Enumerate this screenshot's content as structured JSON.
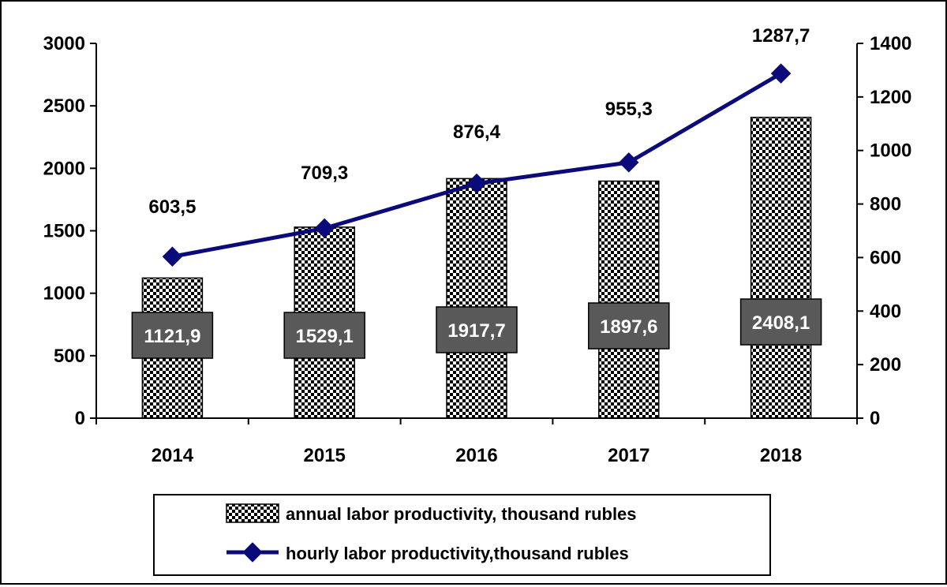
{
  "chart_data": {
    "type": "bar",
    "categories": [
      "2014",
      "2015",
      "2016",
      "2017",
      "2018"
    ],
    "series": [
      {
        "name": "annual labor productivity, thousand rubles",
        "type": "bar",
        "axis": "left",
        "values": [
          1121.9,
          1529.1,
          1917.7,
          1897.6,
          2408.1
        ],
        "labels": [
          "1121,9",
          "1529,1",
          "1917,7",
          "1897,6",
          "2408,1"
        ]
      },
      {
        "name": "hourly labor productivity,thousand rubles",
        "type": "line",
        "axis": "right",
        "values": [
          603.5,
          709.3,
          876.4,
          955.3,
          1287.7
        ],
        "labels": [
          "603,5",
          "709,3",
          "876,4",
          "955,3",
          "1287,7"
        ]
      }
    ],
    "y_left": {
      "ylim": [
        0,
        3000
      ],
      "ticks": [
        "0",
        "500",
        "1000",
        "1500",
        "2000",
        "2500",
        "3000"
      ]
    },
    "y_right": {
      "ylim": [
        0,
        1400
      ],
      "ticks": [
        "0",
        "200",
        "400",
        "600",
        "800",
        "1000",
        "1200",
        "1400"
      ]
    },
    "grid": false,
    "legend_position": "bottom",
    "colors": {
      "line": "#0a0a7a",
      "label_box": "#595959",
      "bar_pattern": "#000000"
    }
  }
}
